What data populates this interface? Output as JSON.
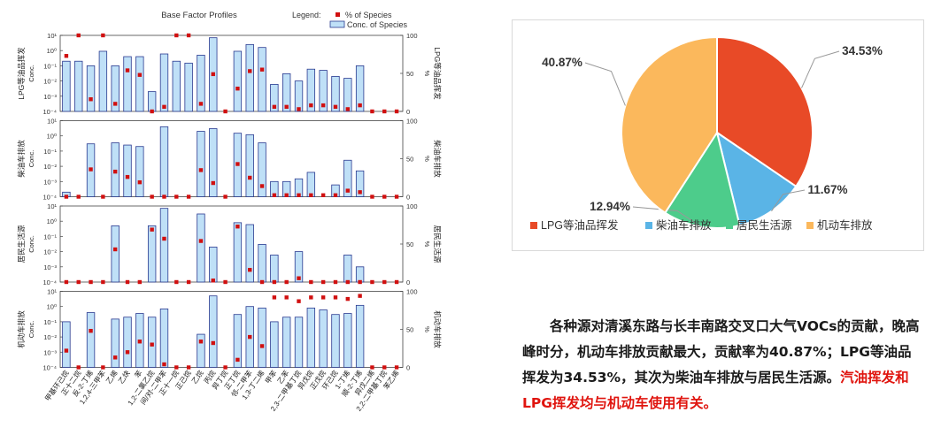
{
  "chart_data": [
    {
      "type": "bar",
      "title": "Base Factor Profiles",
      "legend": {
        "label": "Legend:",
        "pct_label": "% of Species",
        "conc_label": "Conc. of Species",
        "placement": "top-right"
      },
      "y_left_label": "Conc.",
      "y_right_label": "%",
      "y_left_ticks": [
        "10¹",
        "10⁰",
        "10⁻¹",
        "10⁻²",
        "10⁻³",
        "10⁻⁴"
      ],
      "y_right_ticks": [
        "100",
        "50",
        "0"
      ],
      "categories": [
        "甲基环己烷",
        "正十二烷",
        "反-2-丁烯",
        "1,2,4-三甲苯",
        "乙烯",
        "乙炔",
        "苯",
        "1,2-二氯乙烷",
        "间/对-二甲苯",
        "正十一烷",
        "正己烷",
        "乙烷",
        "丙烷",
        "异丁烷",
        "正丁烷",
        "邻-二甲苯",
        "1,3-丁二烯",
        "甲苯",
        "乙苯",
        "2,3-二甲基丁烷",
        "异戊烷",
        "正戊烷",
        "环己烷",
        "1-丁烯",
        "顺-2-丁烯",
        "异戊二烯",
        "2,2-二甲基丁烷",
        "苯乙烯"
      ],
      "factors": [
        {
          "name": "LPG等油品挥发",
          "conc_log10": [
            0.2,
            0.2,
            0.1,
            0.9,
            0.1,
            0.4,
            0.4,
            0.002,
            0.6,
            0.2,
            0.15,
            0.5,
            7.0,
            0.0001,
            0.9,
            2.5,
            1.6,
            0.006,
            0.03,
            0.01,
            0.06,
            0.05,
            0.02,
            0.015,
            0.1,
            0.0001,
            0.0001,
            0.0001
          ],
          "pct": [
            73,
            100,
            16,
            100,
            10,
            54,
            48,
            0,
            6,
            100,
            100,
            10,
            49,
            0,
            30,
            53,
            55,
            6,
            6,
            3,
            8,
            8,
            6,
            3,
            8,
            0,
            0,
            0
          ]
        },
        {
          "name": "柴油车排放",
          "conc_log10": [
            0.0002,
            0.0001,
            0.3,
            0.0001,
            0.35,
            0.25,
            0.2,
            0.0001,
            4.0,
            0.0001,
            0.0001,
            2.0,
            3.0,
            0.0001,
            1.5,
            1.2,
            0.35,
            0.001,
            0.001,
            0.0015,
            0.004,
            0.0001,
            0.0006,
            0.025,
            0.005,
            0.0001,
            0.0001,
            0.0001
          ],
          "pct": [
            0,
            0,
            36,
            0,
            33,
            26,
            19,
            0,
            0,
            0,
            0,
            35,
            18,
            0,
            43,
            25,
            14,
            2,
            2,
            2,
            2,
            2,
            2,
            8,
            6,
            0,
            0,
            0
          ]
        },
        {
          "name": "居民生活源",
          "conc_log10": [
            0.0001,
            0.0001,
            0.0001,
            0.0001,
            0.5,
            0.0001,
            0.0001,
            0.5,
            7.0,
            0.0001,
            0.0001,
            3.0,
            0.02,
            0.0001,
            0.8,
            0.6,
            0.03,
            0.006,
            0.0001,
            0.01,
            0.0001,
            0.0001,
            0.0001,
            0.006,
            0.001,
            0.0001,
            0.0001,
            0.0001
          ],
          "pct": [
            0,
            0,
            0,
            0,
            43,
            0,
            0,
            69,
            57,
            0,
            0,
            54,
            2,
            0,
            73,
            16,
            0,
            0,
            0,
            5,
            0,
            0,
            0,
            0,
            0,
            0,
            0,
            0
          ]
        },
        {
          "name": "机动车排放",
          "conc_log10": [
            0.1,
            0.0001,
            0.4,
            0.0001,
            0.15,
            0.2,
            0.35,
            0.2,
            0.7,
            0.0001,
            0.0001,
            0.015,
            5.0,
            0.0001,
            0.3,
            1.0,
            0.8,
            0.1,
            0.2,
            0.2,
            0.8,
            0.6,
            0.3,
            0.35,
            1.2,
            0.0001,
            0.0001,
            0.0001
          ],
          "pct": [
            22,
            0,
            48,
            0,
            13,
            20,
            34,
            30,
            4,
            0,
            0,
            34,
            32,
            0,
            10,
            40,
            28,
            92,
            92,
            87,
            92,
            92,
            92,
            90,
            94,
            0,
            0,
            0
          ]
        }
      ]
    },
    {
      "type": "pie",
      "categories": [
        "LPG等油品挥发",
        "柴油车排放",
        "居民生活源",
        "机动车排放"
      ],
      "values": [
        34.53,
        11.67,
        12.94,
        40.87
      ],
      "labels": [
        "34.53%",
        "11.67%",
        "12.94%",
        "40.87%"
      ],
      "colors": [
        "#e84a27",
        "#5ab4e6",
        "#4dcc8b",
        "#fbb85c"
      ],
      "legend_placement": "bottom"
    }
  ],
  "description": {
    "line_main": "各种源对清溪东路与长丰南路交叉口大气VOCs的贡献，晚高峰时分，机动车排放贡献最大，贡献率为40.87%；LPG等油品挥发为34.53%，其次为柴油车排放与居民生活源。",
    "line_highlight": "汽油挥发和LPG挥发均与机动车使用有关。"
  }
}
